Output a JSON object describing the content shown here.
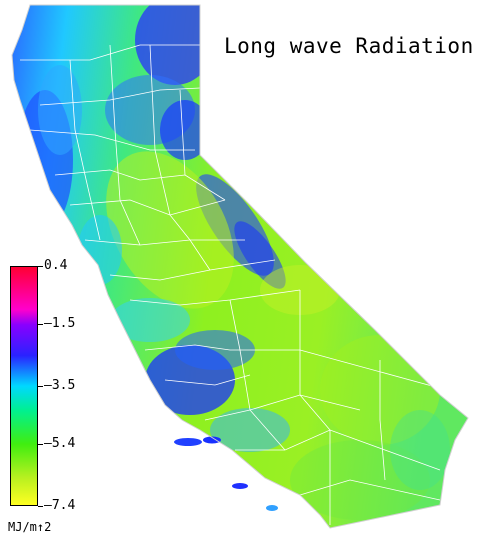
{
  "map": {
    "title": "Long wave Radiation",
    "region": "California",
    "colors": {
      "ocean": "#ffffff",
      "county_lines": "#ffffff",
      "state_outline": "#cccccc",
      "coastal_low": "#1e4bff",
      "inland_high": "#7cf00a"
    }
  },
  "legend": {
    "units": "MJ/m↑2",
    "ticks": [
      {
        "label": "0.4",
        "value": 0.4
      },
      {
        "label": "–1.5",
        "value": -1.5
      },
      {
        "label": "–3.5",
        "value": -3.5
      },
      {
        "label": "–5.4",
        "value": -5.4
      },
      {
        "label": "–7.4",
        "value": -7.4
      }
    ],
    "color_stops": [
      {
        "value": 0.4,
        "color": "#ff0033"
      },
      {
        "value": -1.0,
        "color": "#ff00cc"
      },
      {
        "value": -1.5,
        "color": "#8800ff"
      },
      {
        "value": -2.5,
        "color": "#2a22ff"
      },
      {
        "value": -3.5,
        "color": "#00d8ff"
      },
      {
        "value": -4.3,
        "color": "#00f090"
      },
      {
        "value": -5.4,
        "color": "#40ee10"
      },
      {
        "value": -6.5,
        "color": "#b8f020"
      },
      {
        "value": -7.4,
        "color": "#ffff22"
      }
    ],
    "range": [
      -7.4,
      0.4
    ]
  }
}
